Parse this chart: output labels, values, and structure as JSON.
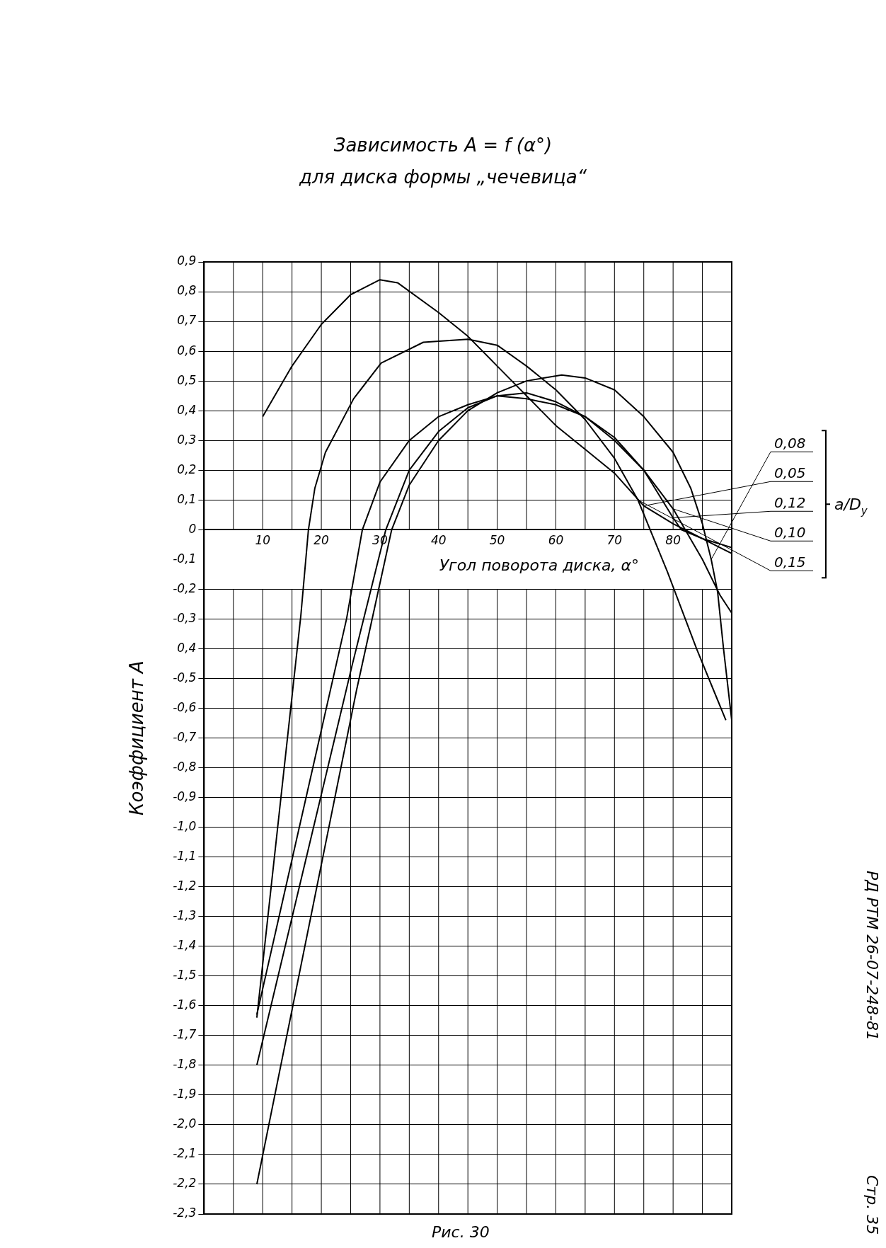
{
  "chart_data": {
    "type": "line",
    "title": "Зависимость A = f (α°)",
    "subtitle": "для диска формы „чечевица“",
    "xlabel": "Угол поворота диска, α°",
    "ylabel": "Коэффициент A",
    "legend_title": "a/D$_{y}$",
    "annotations": [
      "Рис. 30",
      "РД РТМ 26-07-248-81",
      "Стр. 35"
    ],
    "xlim": [
      0,
      90
    ],
    "ylim": [
      -2.3,
      0.9
    ],
    "xticks": [
      {
        "value": 5,
        "label": null
      },
      10,
      {
        "value": 15,
        "label": null
      },
      20,
      {
        "value": 25,
        "label": null
      },
      30,
      {
        "value": 35,
        "label": null
      },
      40,
      {
        "value": 45,
        "label": null
      },
      50,
      {
        "value": 55,
        "label": null
      },
      60,
      {
        "value": 65,
        "label": null
      },
      70,
      {
        "value": 75,
        "label": null
      },
      80,
      {
        "value": 85,
        "label": null
      }
    ],
    "yticks": [
      {
        "value": 0.9,
        "label": "0,9"
      },
      {
        "value": 0.8,
        "label": "0,8"
      },
      {
        "value": 0.7,
        "label": "0,7"
      },
      {
        "value": 0.6,
        "label": "0,6"
      },
      {
        "value": 0.5,
        "label": "0,5"
      },
      {
        "value": 0.4,
        "label": "0,4"
      },
      {
        "value": 0.3,
        "label": "0,3"
      },
      {
        "value": 0.2,
        "label": "0,2"
      },
      {
        "value": 0.1,
        "label": "0,1"
      },
      {
        "value": 0,
        "label": "0"
      },
      {
        "value": -0.1,
        "label": "-0,1"
      },
      {
        "value": -0.2,
        "label": "-0,2"
      },
      {
        "value": -0.3,
        "label": "-0,3"
      },
      {
        "value": -0.4,
        "label": "0,4"
      },
      {
        "value": -0.5,
        "label": "-0,5"
      },
      {
        "value": -0.6,
        "label": "-0,6"
      },
      {
        "value": -0.7,
        "label": "-0,7"
      },
      {
        "value": -0.8,
        "label": "-0,8"
      },
      {
        "value": -0.9,
        "label": "-0,9"
      },
      {
        "value": -1.0,
        "label": "-1,0"
      },
      {
        "value": -1.1,
        "label": "-1,1"
      },
      {
        "value": -1.2,
        "label": "-1,2"
      },
      {
        "value": -1.3,
        "label": "-1,3"
      },
      {
        "value": -1.4,
        "label": "-1,4"
      },
      {
        "value": -1.5,
        "label": "-1,5"
      },
      {
        "value": -1.6,
        "label": "-1,6"
      },
      {
        "value": -1.7,
        "label": "-1,7"
      },
      {
        "value": -1.8,
        "label": "-1,8"
      },
      {
        "value": -1.9,
        "label": "-1,9"
      },
      {
        "value": -2.0,
        "label": "-2,0"
      },
      {
        "value": -2.1,
        "label": "-2,1"
      },
      {
        "value": -2.2,
        "label": "-2,2"
      },
      {
        "value": -2.3,
        "label": "-2,3"
      }
    ],
    "grid": true,
    "marker": "none",
    "line_style": "solid",
    "series": [
      {
        "name": "0,08",
        "color": "#000000",
        "x": [
          9,
          26,
          32,
          35,
          40,
          45,
          50,
          55,
          61,
          65,
          70,
          75,
          80,
          83,
          85,
          86.5,
          87.6,
          88.6,
          90
        ],
        "values": [
          -2.2,
          -0.54,
          0,
          0.15,
          0.3,
          0.4,
          0.46,
          0.5,
          0.52,
          0.51,
          0.47,
          0.38,
          0.26,
          0.14,
          0.02,
          -0.1,
          -0.21,
          -0.4,
          -0.64
        ]
      },
      {
        "name": "0,05",
        "color": "#000000",
        "x": [
          10,
          15,
          20,
          25,
          30,
          33,
          40,
          45,
          50,
          55,
          60,
          65,
          70,
          75,
          80,
          85,
          90
        ],
        "values": [
          0.38,
          0.55,
          0.69,
          0.79,
          0.84,
          0.83,
          0.73,
          0.65,
          0.55,
          0.45,
          0.35,
          0.27,
          0.19,
          0.08,
          0.02,
          -0.03,
          -0.08
        ]
      },
      {
        "name": "0,12",
        "color": "#000000",
        "x": [
          9,
          25.2,
          31,
          35,
          40,
          45,
          50,
          55,
          60,
          65,
          70,
          75,
          80,
          81.4,
          85,
          90
        ],
        "values": [
          -1.8,
          -0.46,
          0,
          0.2,
          0.33,
          0.41,
          0.45,
          0.44,
          0.42,
          0.38,
          0.31,
          0.2,
          0.04,
          0,
          -0.03,
          -0.06
        ]
      },
      {
        "name": "0,10",
        "color": "#000000",
        "x": [
          9,
          24.3,
          27,
          30,
          35,
          40,
          45,
          50,
          55,
          60,
          65,
          70,
          75,
          80,
          85,
          88,
          90
        ],
        "values": [
          -1.63,
          -0.3,
          0,
          0.16,
          0.3,
          0.38,
          0.42,
          0.45,
          0.46,
          0.43,
          0.38,
          0.3,
          0.2,
          0.07,
          -0.1,
          -0.22,
          -0.28
        ]
      },
      {
        "name": "0,15",
        "color": "#000000",
        "x": [
          9,
          16.5,
          17.8,
          18.9,
          20.7,
          25.5,
          30.2,
          37.4,
          45,
          50,
          55,
          60,
          65,
          70,
          74,
          79,
          84,
          89
        ],
        "values": [
          -1.64,
          -0.29,
          0,
          0.14,
          0.26,
          0.44,
          0.56,
          0.63,
          0.64,
          0.62,
          0.55,
          0.47,
          0.37,
          0.24,
          0.1,
          -0.14,
          -0.4,
          -0.64
        ]
      }
    ]
  }
}
